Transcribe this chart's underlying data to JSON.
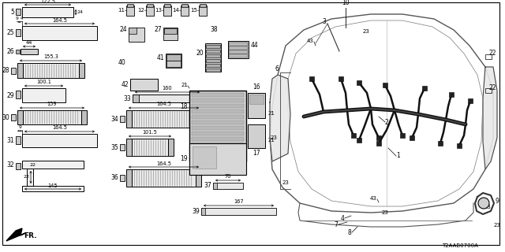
{
  "bg_color": "#ffffff",
  "border_color": "#000000",
  "text_color": "#000000",
  "diagram_code": "T2AAB0700A",
  "figw": 6.4,
  "figh": 3.2,
  "dpi": 100
}
